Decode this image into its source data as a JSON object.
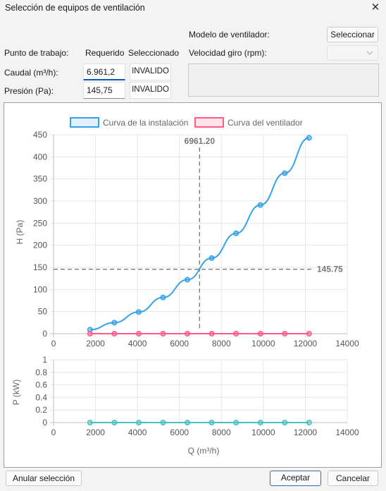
{
  "window": {
    "title": "Selección de equipos de ventilación",
    "close_glyph": "✕"
  },
  "form": {
    "modelo_label": "Modelo de ventilador:",
    "seleccionar_label": "Seleccionar",
    "velocidad_label": "Velocidad giro (rpm):",
    "velocidad_value": "",
    "punto_label": "Punto de trabajo:",
    "requerido_label": "Requerido",
    "seleccionado_label": "Seleccionado",
    "caudal_label": "Caudal (m³/h):",
    "caudal_value": "6.961,2",
    "caudal_sel": "INVALIDO",
    "presion_label": "Presión (Pa):",
    "presion_value": "145,75",
    "presion_sel": "INVALIDO"
  },
  "legend": [
    {
      "label": "Curva de la instalación",
      "color": "#36a2eb",
      "fill": "#e1f0fb"
    },
    {
      "label": "Curva del ventilador",
      "color": "#ff5a8a",
      "fill": "#ffe3ea"
    }
  ],
  "chart_data": [
    {
      "type": "line",
      "ylabel": "H (Pa)",
      "xlim": [
        0,
        14000
      ],
      "ylim": [
        0,
        450
      ],
      "x_ticks": [
        0,
        2000,
        4000,
        6000,
        8000,
        10000,
        12000,
        14000
      ],
      "y_ticks": [
        0,
        50,
        100,
        150,
        200,
        250,
        300,
        350,
        400,
        450
      ],
      "grid": true,
      "legend_position": "top",
      "series": [
        {
          "name": "Curva de la instalación",
          "color": "#36a2eb",
          "x": [
            1740,
            2900,
            4060,
            5220,
            6380,
            7540,
            8700,
            9860,
            11020,
            12180
          ],
          "y": [
            9,
            25,
            49,
            82,
            122,
            171,
            227,
            291,
            363,
            443
          ]
        },
        {
          "name": "Curva del ventilador",
          "color": "#ff5a8a",
          "x": [
            1740,
            2900,
            4060,
            5220,
            6380,
            7540,
            8700,
            9860,
            11020,
            12180
          ],
          "y": [
            0,
            0,
            0,
            0,
            0,
            0,
            0,
            0,
            0,
            0
          ]
        }
      ],
      "annotations": [
        {
          "axis": "x",
          "value": 6961.2,
          "label": "6961.20"
        },
        {
          "axis": "y",
          "value": 145.75,
          "label": "145.75"
        }
      ]
    },
    {
      "type": "line",
      "xlabel": "Q (m³/h)",
      "ylabel": "P (kW)",
      "xlim": [
        0,
        14000
      ],
      "ylim": [
        0,
        1.0
      ],
      "x_ticks": [
        0,
        2000,
        4000,
        6000,
        8000,
        10000,
        12000,
        14000
      ],
      "y_ticks": [
        0,
        0.2,
        0.4,
        0.6,
        0.8,
        1.0
      ],
      "grid": true,
      "series": [
        {
          "color": "#4bc0c0",
          "x": [
            1740,
            2900,
            4060,
            5220,
            6380,
            7540,
            8700,
            9860,
            11020,
            12180
          ],
          "y": [
            0,
            0,
            0,
            0,
            0,
            0,
            0,
            0,
            0,
            0
          ]
        }
      ]
    }
  ],
  "footer": {
    "anular_label": "Anular selección",
    "aceptar_label": "Aceptar",
    "cancelar_label": "Cancelar"
  }
}
